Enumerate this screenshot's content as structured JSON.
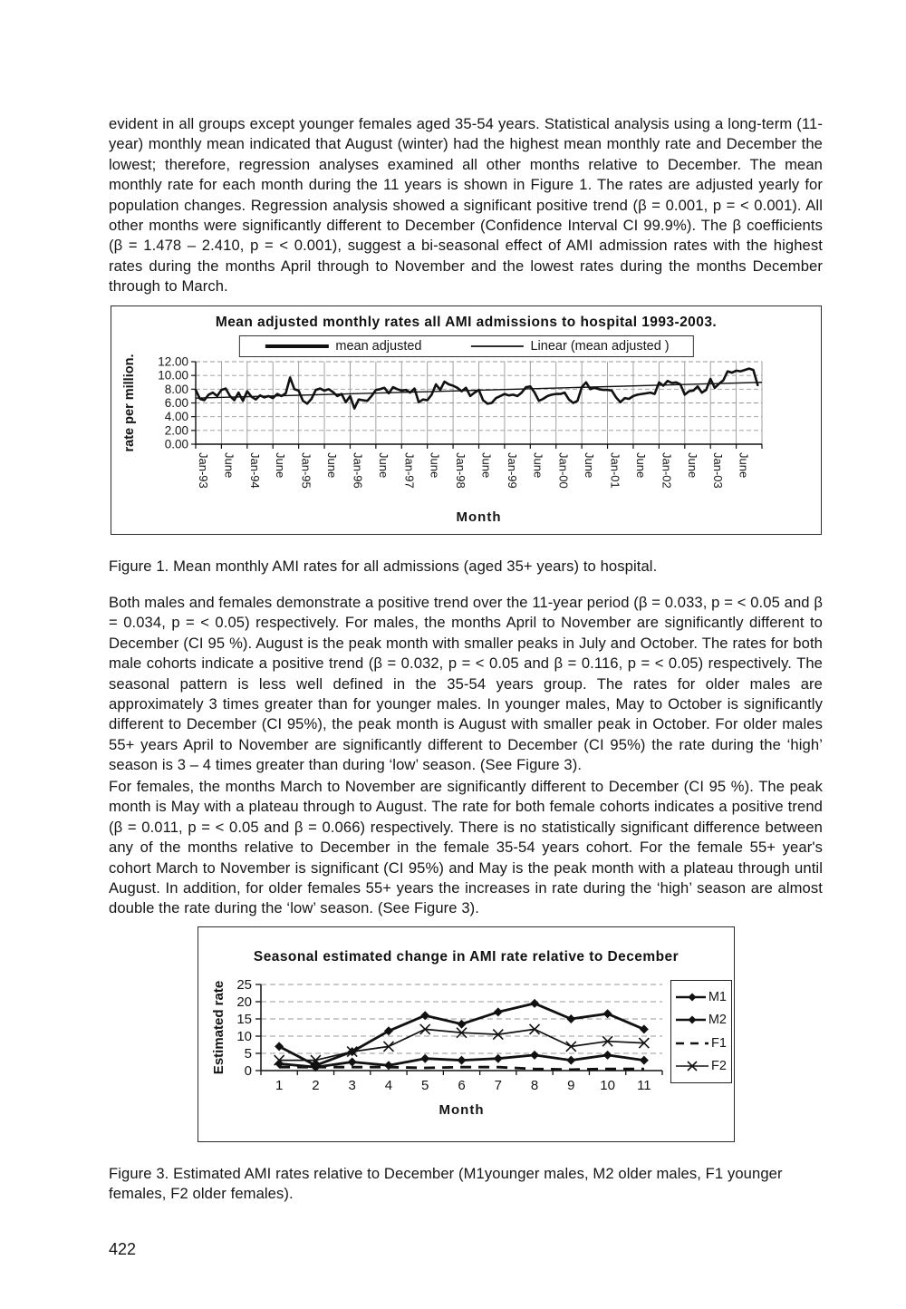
{
  "document": {
    "paragraph_1": "evident in all groups except younger females aged 35-54 years. Statistical analysis using a long-term (11-year) monthly mean indicated that August (winter) had the highest mean monthly rate and December the lowest; therefore, regression analyses examined all other months relative to December. The mean monthly rate for each month during the 11 years is shown in Figure 1. The rates are adjusted yearly for population changes. Regression analysis showed a significant positive trend (β = 0.001, p = < 0.001). All other months were significantly different to December (Confidence Interval CI 99.9%). The β coefficients (β = 1.478 – 2.410, p = < 0.001), suggest a bi-seasonal effect of AMI admission rates with the highest rates during the months April through to November and the lowest rates during the months December through to March.",
    "figure_1_caption": "Figure 1. Mean monthly AMI rates for all admissions (aged 35+ years) to hospital.",
    "paragraph_2": "Both males and females demonstrate a positive trend over the 11-year period (β = 0.033, p = < 0.05 and β = 0.034, p = < 0.05) respectively. For males, the months April to November are significantly different to December (CI 95 %). August is the peak month with smaller peaks in July and October. The rates for both male cohorts indicate a positive trend (β = 0.032, p = < 0.05 and β = 0.116, p = < 0.05) respectively. The seasonal pattern is less well defined in the 35-54 years group. The rates for older males are approximately 3 times greater than for younger males. In younger males, May to October is significantly different to December (CI 95%), the peak month is August with smaller peak in October.  For older males 55+ years April to November are significantly different to December (CI 95%) the rate during the ‘high’ season is 3 – 4 times greater than during ‘low’ season. (See Figure 3).",
    "paragraph_3": "For females, the months March to November are significantly different to December (CI 95 %).  The peak month is May with a plateau through to August. The rate for both female cohorts indicates a positive trend (β = 0.011, p = < 0.05 and β = 0.066) respectively. There is no statistically significant difference between any of the months relative to December in the female 35-54 years cohort. For the female 55+ year's cohort March to November is significant (CI 95%) and May is the peak month with a plateau through until August. In addition, for older females 55+ years the increases in rate during the ‘high’ season are almost double the rate during the ‘low’ season. (See Figure 3).",
    "figure_3_caption": "Figure 3. Estimated AMI rates relative to December (M1younger males, M2 older males, F1 younger females, F2 older females).",
    "page_number": "422"
  },
  "chart_data": [
    {
      "type": "line",
      "title": "Mean adjusted monthly rates all AMI  admissions to hospital 1993-2003.",
      "xlabel": "Month",
      "ylabel": "rate per million.",
      "ylim": [
        0,
        12
      ],
      "ytick_step": 2,
      "yticks": [
        "12.00",
        "10.00",
        "8.00",
        "6.00",
        "4.00",
        "2.00",
        "0.00"
      ],
      "xticklabels": [
        "Jan-93",
        "June",
        "Jan-94",
        "June",
        "Jan-95",
        "June",
        "Jan-96",
        "June",
        "Jan-97",
        "June",
        "Jan-98",
        "June",
        "Jan-99",
        "June",
        "Jan-00",
        "June",
        "Jan-01",
        "June",
        "Jan-02",
        "June",
        "Jan-03",
        "June"
      ],
      "grid": true,
      "legend_position": "top",
      "series": [
        {
          "name": "mean adjusted",
          "style": "thick",
          "values": [
            7.9,
            6.6,
            6.4,
            7.2,
            7.5,
            7.0,
            7.9,
            8.1,
            7.0,
            6.4,
            7.5,
            6.3,
            7.7,
            6.9,
            6.5,
            7.1,
            6.8,
            7.0,
            6.7,
            7.3,
            7.0,
            7.4,
            9.7,
            8.0,
            7.8,
            6.3,
            5.9,
            6.6,
            7.9,
            8.1,
            7.8,
            8.0,
            7.6,
            7.0,
            7.3,
            6.1,
            7.0,
            5.2,
            6.5,
            6.4,
            6.3,
            7.0,
            7.9,
            8.0,
            8.2,
            7.4,
            8.3,
            8.0,
            7.8,
            7.9,
            7.5,
            8.1,
            6.1,
            6.5,
            6.4,
            7.2,
            8.7,
            7.9,
            9.1,
            8.7,
            8.5,
            8.2,
            7.7,
            8.2,
            7.0,
            7.5,
            7.9,
            6.4,
            5.9,
            6.0,
            6.7,
            7.0,
            7.3,
            7.1,
            7.2,
            7.0,
            7.5,
            8.3,
            8.4,
            7.5,
            6.3,
            6.6,
            7.0,
            7.2,
            7.3,
            7.3,
            7.5,
            6.5,
            6.0,
            6.3,
            8.3,
            9.0,
            8.0,
            8.2,
            8.0,
            7.9,
            7.9,
            7.8,
            6.8,
            6.1,
            6.7,
            6.6,
            7.0,
            7.2,
            7.3,
            7.4,
            7.5,
            7.3,
            9.0,
            8.5,
            9.2,
            8.9,
            9.0,
            8.7,
            7.2,
            7.7,
            7.8,
            8.4,
            7.5,
            7.9,
            9.5,
            8.2,
            8.8,
            9.3,
            10.6,
            10.4,
            10.7,
            10.6,
            10.8,
            11.0,
            10.8,
            8.6
          ]
        },
        {
          "name": "Linear (mean adjusted )",
          "style": "thin",
          "trend": [
            6.7,
            9.0
          ]
        }
      ]
    },
    {
      "type": "line",
      "title": "Seasonal estimated change in AMI rate relative to December",
      "xlabel": "Month",
      "ylabel": "Estimated rate",
      "ylim": [
        0,
        25
      ],
      "yticks": [
        25,
        20,
        15,
        10,
        5,
        0
      ],
      "x": [
        1,
        2,
        3,
        4,
        5,
        6,
        7,
        8,
        9,
        10,
        11
      ],
      "grid": true,
      "legend_position": "right",
      "series": [
        {
          "name": "M1",
          "marker": "diamond",
          "line": "solid",
          "values": [
            2.0,
            1.0,
            2.5,
            1.5,
            3.5,
            3.0,
            3.5,
            4.5,
            3.0,
            4.5,
            3.0
          ]
        },
        {
          "name": "M2",
          "marker": "diamond",
          "line": "solid",
          "values": [
            7.0,
            1.5,
            5.5,
            11.5,
            16.0,
            13.5,
            17.0,
            19.5,
            15.0,
            16.5,
            12.0
          ]
        },
        {
          "name": "F1",
          "marker": "none",
          "line": "dashed",
          "values": [
            1.0,
            1.0,
            1.0,
            1.0,
            0.8,
            1.0,
            1.0,
            0.5,
            0.3,
            0.5,
            0.5
          ]
        },
        {
          "name": "F2",
          "marker": "x",
          "line": "solid-thin",
          "values": [
            3.0,
            3.0,
            5.5,
            7.0,
            12.0,
            11.0,
            10.5,
            12.0,
            7.0,
            8.5,
            8.0
          ]
        }
      ]
    }
  ]
}
